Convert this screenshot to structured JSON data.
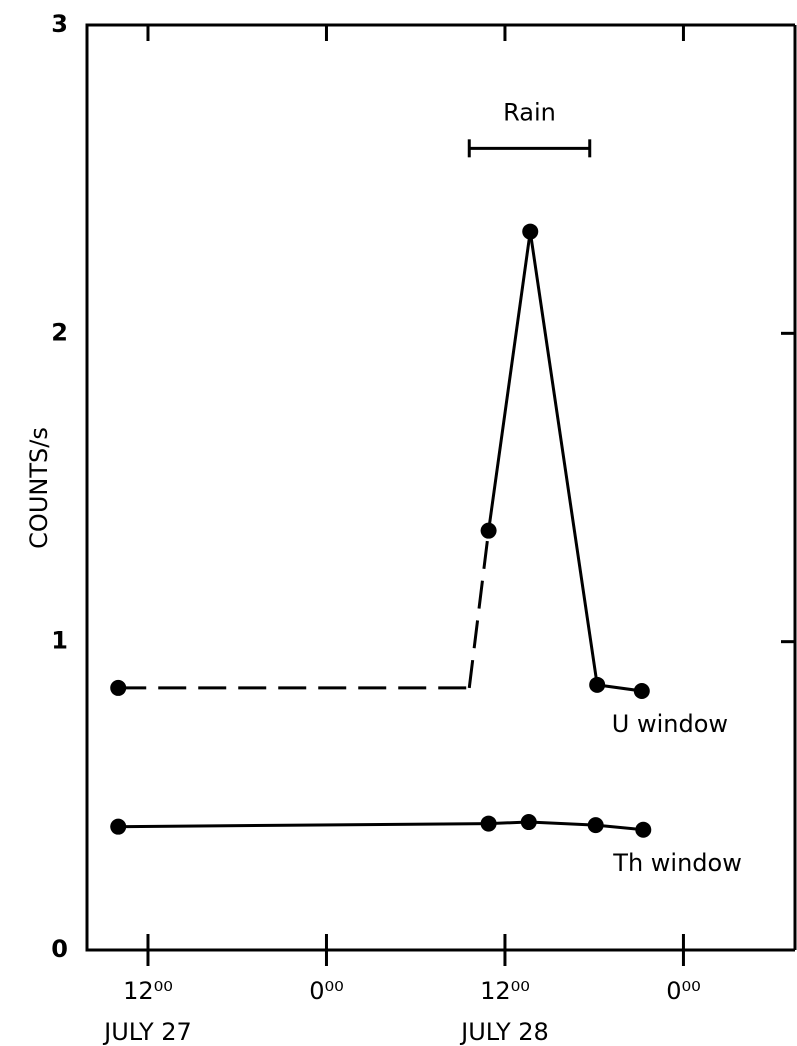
{
  "chart_data": {
    "type": "line",
    "ylabel": "COUNTS/s",
    "xlim": [
      7.9,
      55.5
    ],
    "ylim": [
      0,
      3
    ],
    "yticks": [
      0,
      1,
      2,
      3
    ],
    "xticks": [
      {
        "value": 12,
        "label": "12⁰⁰"
      },
      {
        "value": 24,
        "label": "0⁰⁰"
      },
      {
        "value": 36,
        "label": "12⁰⁰"
      },
      {
        "value": 48,
        "label": "0⁰⁰"
      }
    ],
    "xtick_dates": [
      {
        "value": 12,
        "label": "JULY 27"
      },
      {
        "value": 36,
        "label": "JULY 28"
      }
    ],
    "series": [
      {
        "name": "U window",
        "color": "#000000",
        "x": [
          10,
          33.6,
          34.9,
          37.7,
          42.2,
          45.2
        ],
        "values": [
          0.85,
          0.85,
          1.36,
          2.33,
          0.86,
          0.84
        ],
        "markers": [
          true,
          false,
          true,
          true,
          true,
          true
        ],
        "dashed_segments": [
          0,
          1
        ]
      },
      {
        "name": "Th window",
        "color": "#000000",
        "x": [
          10,
          34.9,
          37.6,
          42.1,
          45.3
        ],
        "values": [
          0.4,
          0.41,
          0.415,
          0.405,
          0.39
        ],
        "markers": [
          true,
          true,
          true,
          true,
          true
        ],
        "dashed_segments": []
      }
    ],
    "annotations": [
      {
        "text": "Rain",
        "x": [
          33.6,
          41.7
        ],
        "y": 2.6
      }
    ]
  }
}
